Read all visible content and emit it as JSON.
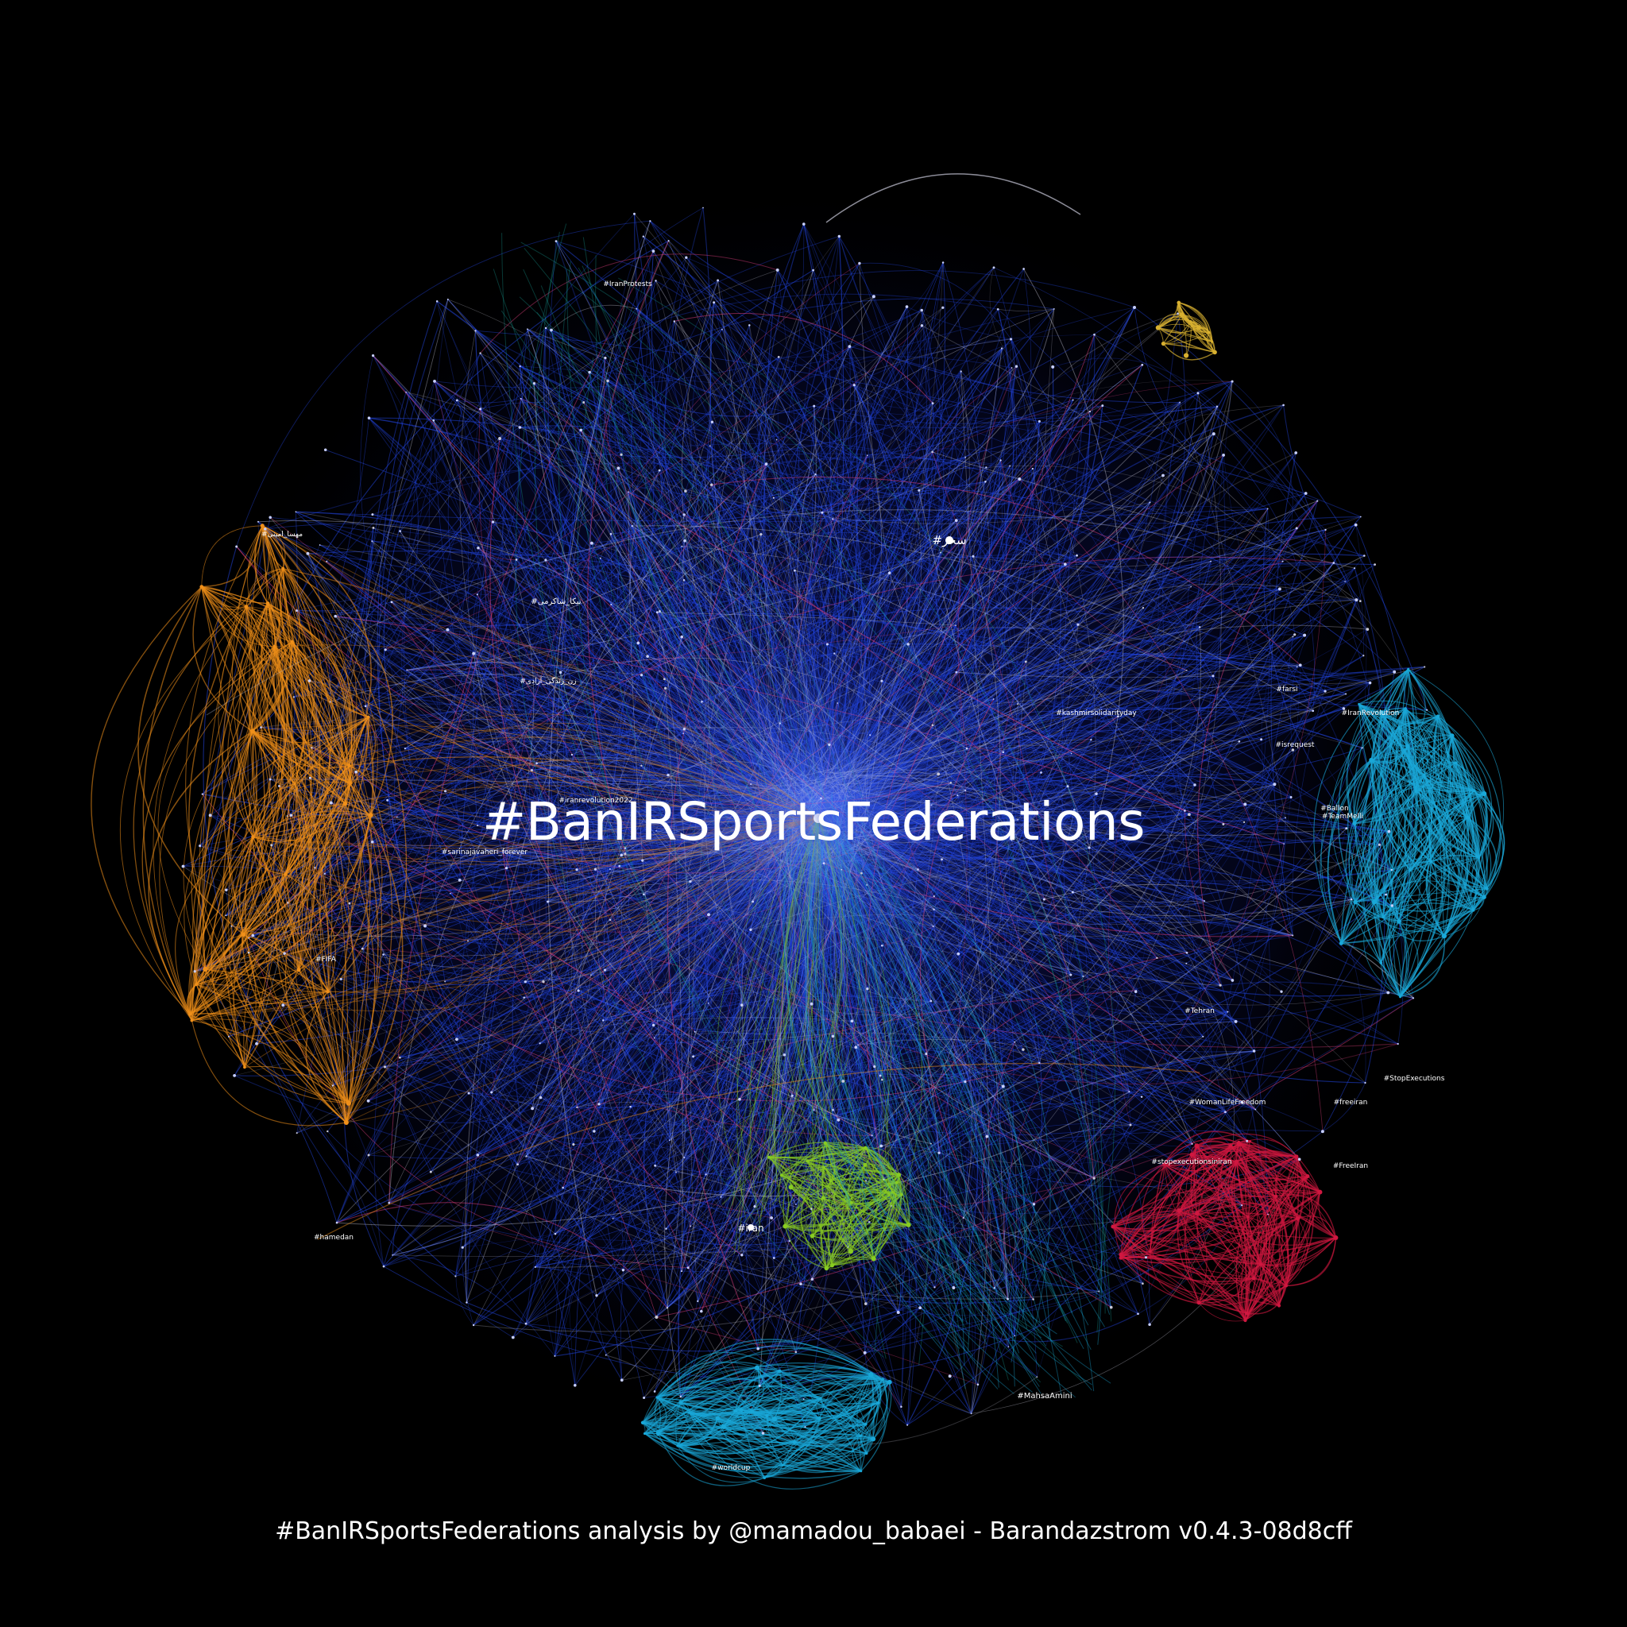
{
  "title": "#BanIRSportsFederations",
  "caption": "#BanIRSportsFederations analysis by @mamadou_babaei - Barandazstrom v0.4.3-08d8cff",
  "colors": {
    "background": "#000000",
    "blue": "#2244dd",
    "white": "#c8c8d8",
    "orange": "#f0901a",
    "cyan": "#1aa8d8",
    "green": "#88cc22",
    "red": "#d01840",
    "gold": "#d8b030",
    "pink": "#e04080",
    "teal": "#18a098",
    "core": "#5a7cff"
  },
  "node_labels": [
    "#سحر",
    "#iran",
    "#IranRevolution",
    "#FreeIran",
    "#MahsaAmini",
    "#freeiran",
    "#kashmirsolidarityday",
    "#WomanLifeFreedom",
    "#stopexecutionsiniran",
    "#sarinajavaheri_forever",
    "#نیکا_شاکرمی",
    "#مهسا_امینی",
    "#زن_زندگی_آزادی",
    "#farsi",
    "#iranrevolution2022",
    "#StopExecutions",
    "#IranProtests",
    "#FIFA",
    "#worldcup",
    "#isrequest",
    "#TeamMelli",
    "#Tehran",
    "#hamedan",
    "#Ballon"
  ]
}
